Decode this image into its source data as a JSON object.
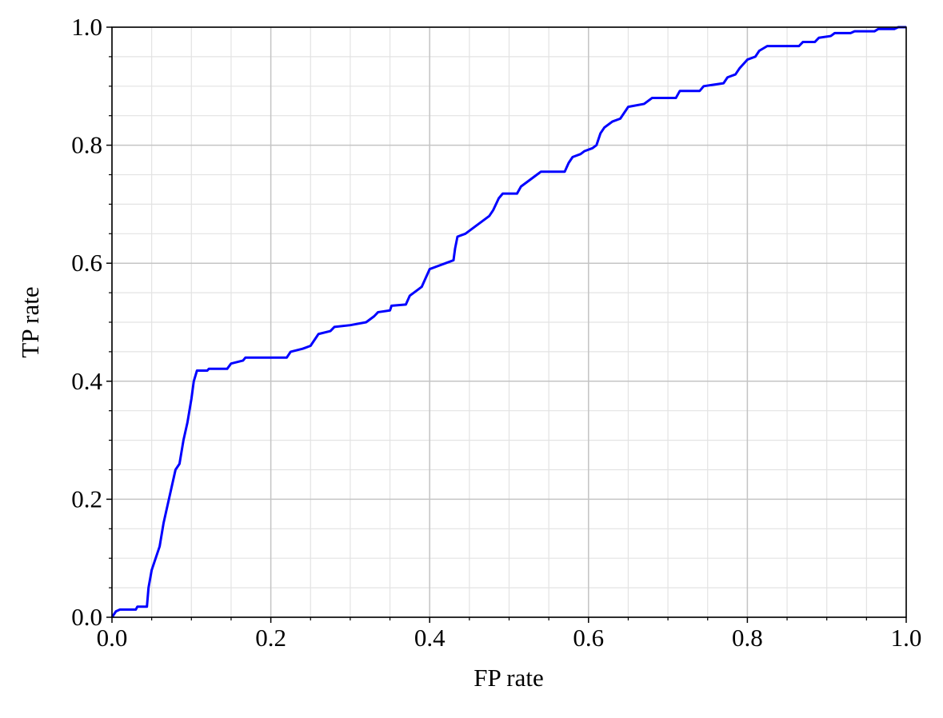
{
  "chart_data": {
    "type": "line",
    "xlabel": "FP rate",
    "ylabel": "TP rate",
    "xlim": [
      0,
      1
    ],
    "ylim": [
      0,
      1
    ],
    "xticks": [
      {
        "value": 0,
        "label": "0.0"
      },
      0.2,
      0.4,
      0.6,
      0.8,
      {
        "value": 1,
        "label": "1.0"
      }
    ],
    "yticks": [
      {
        "value": 0,
        "label": "0.0"
      },
      0.2,
      0.4,
      0.6,
      0.8,
      {
        "value": 1,
        "label": "1.0"
      }
    ],
    "xminorticks": [
      0.05,
      0.1,
      0.15,
      0.25,
      0.3,
      0.35,
      0.45,
      0.5,
      0.55,
      0.65,
      0.7,
      0.75,
      0.85,
      0.9,
      0.95
    ],
    "yminorticks": [
      0.05,
      0.1,
      0.15,
      0.25,
      0.3,
      0.35,
      0.45,
      0.5,
      0.55,
      0.65,
      0.7,
      0.75,
      0.85,
      0.9,
      0.95
    ],
    "grid": true,
    "minor_grid": true,
    "series": [
      {
        "color": "#0000ff",
        "x": [
          0,
          0.005,
          0.01,
          0.03,
          0.032,
          0.044,
          0.046,
          0.05,
          0.055,
          0.06,
          0.065,
          0.07,
          0.075,
          0.08,
          0.085,
          0.09,
          0.095,
          0.1,
          0.103,
          0.107,
          0.12,
          0.122,
          0.145,
          0.15,
          0.165,
          0.168,
          0.22,
          0.225,
          0.24,
          0.25,
          0.255,
          0.26,
          0.275,
          0.28,
          0.3,
          0.32,
          0.33,
          0.335,
          0.35,
          0.352,
          0.37,
          0.375,
          0.385,
          0.39,
          0.395,
          0.4,
          0.41,
          0.42,
          0.43,
          0.432,
          0.435,
          0.445,
          0.455,
          0.465,
          0.475,
          0.48,
          0.487,
          0.492,
          0.51,
          0.515,
          0.525,
          0.535,
          0.54,
          0.57,
          0.575,
          0.58,
          0.59,
          0.595,
          0.605,
          0.61,
          0.615,
          0.62,
          0.63,
          0.64,
          0.645,
          0.65,
          0.67,
          0.68,
          0.71,
          0.715,
          0.74,
          0.745,
          0.77,
          0.775,
          0.785,
          0.79,
          0.8,
          0.81,
          0.815,
          0.825,
          0.865,
          0.87,
          0.885,
          0.89,
          0.905,
          0.91,
          0.93,
          0.935,
          0.96,
          0.965,
          0.985,
          0.99,
          1
        ],
        "values": [
          0,
          0.01,
          0.013,
          0.013,
          0.018,
          0.018,
          0.05,
          0.08,
          0.1,
          0.12,
          0.16,
          0.19,
          0.22,
          0.25,
          0.26,
          0.3,
          0.33,
          0.37,
          0.4,
          0.418,
          0.418,
          0.421,
          0.421,
          0.43,
          0.435,
          0.44,
          0.44,
          0.45,
          0.455,
          0.46,
          0.47,
          0.48,
          0.485,
          0.492,
          0.495,
          0.5,
          0.51,
          0.517,
          0.52,
          0.528,
          0.53,
          0.545,
          0.555,
          0.56,
          0.575,
          0.59,
          0.595,
          0.6,
          0.605,
          0.625,
          0.645,
          0.65,
          0.66,
          0.67,
          0.68,
          0.69,
          0.71,
          0.718,
          0.718,
          0.73,
          0.74,
          0.75,
          0.755,
          0.755,
          0.77,
          0.78,
          0.785,
          0.79,
          0.795,
          0.8,
          0.82,
          0.83,
          0.84,
          0.845,
          0.855,
          0.865,
          0.87,
          0.88,
          0.88,
          0.892,
          0.892,
          0.9,
          0.905,
          0.915,
          0.92,
          0.93,
          0.945,
          0.95,
          0.96,
          0.968,
          0.968,
          0.975,
          0.975,
          0.982,
          0.985,
          0.99,
          0.99,
          0.993,
          0.993,
          0.997,
          0.997,
          1,
          1
        ]
      }
    ]
  }
}
